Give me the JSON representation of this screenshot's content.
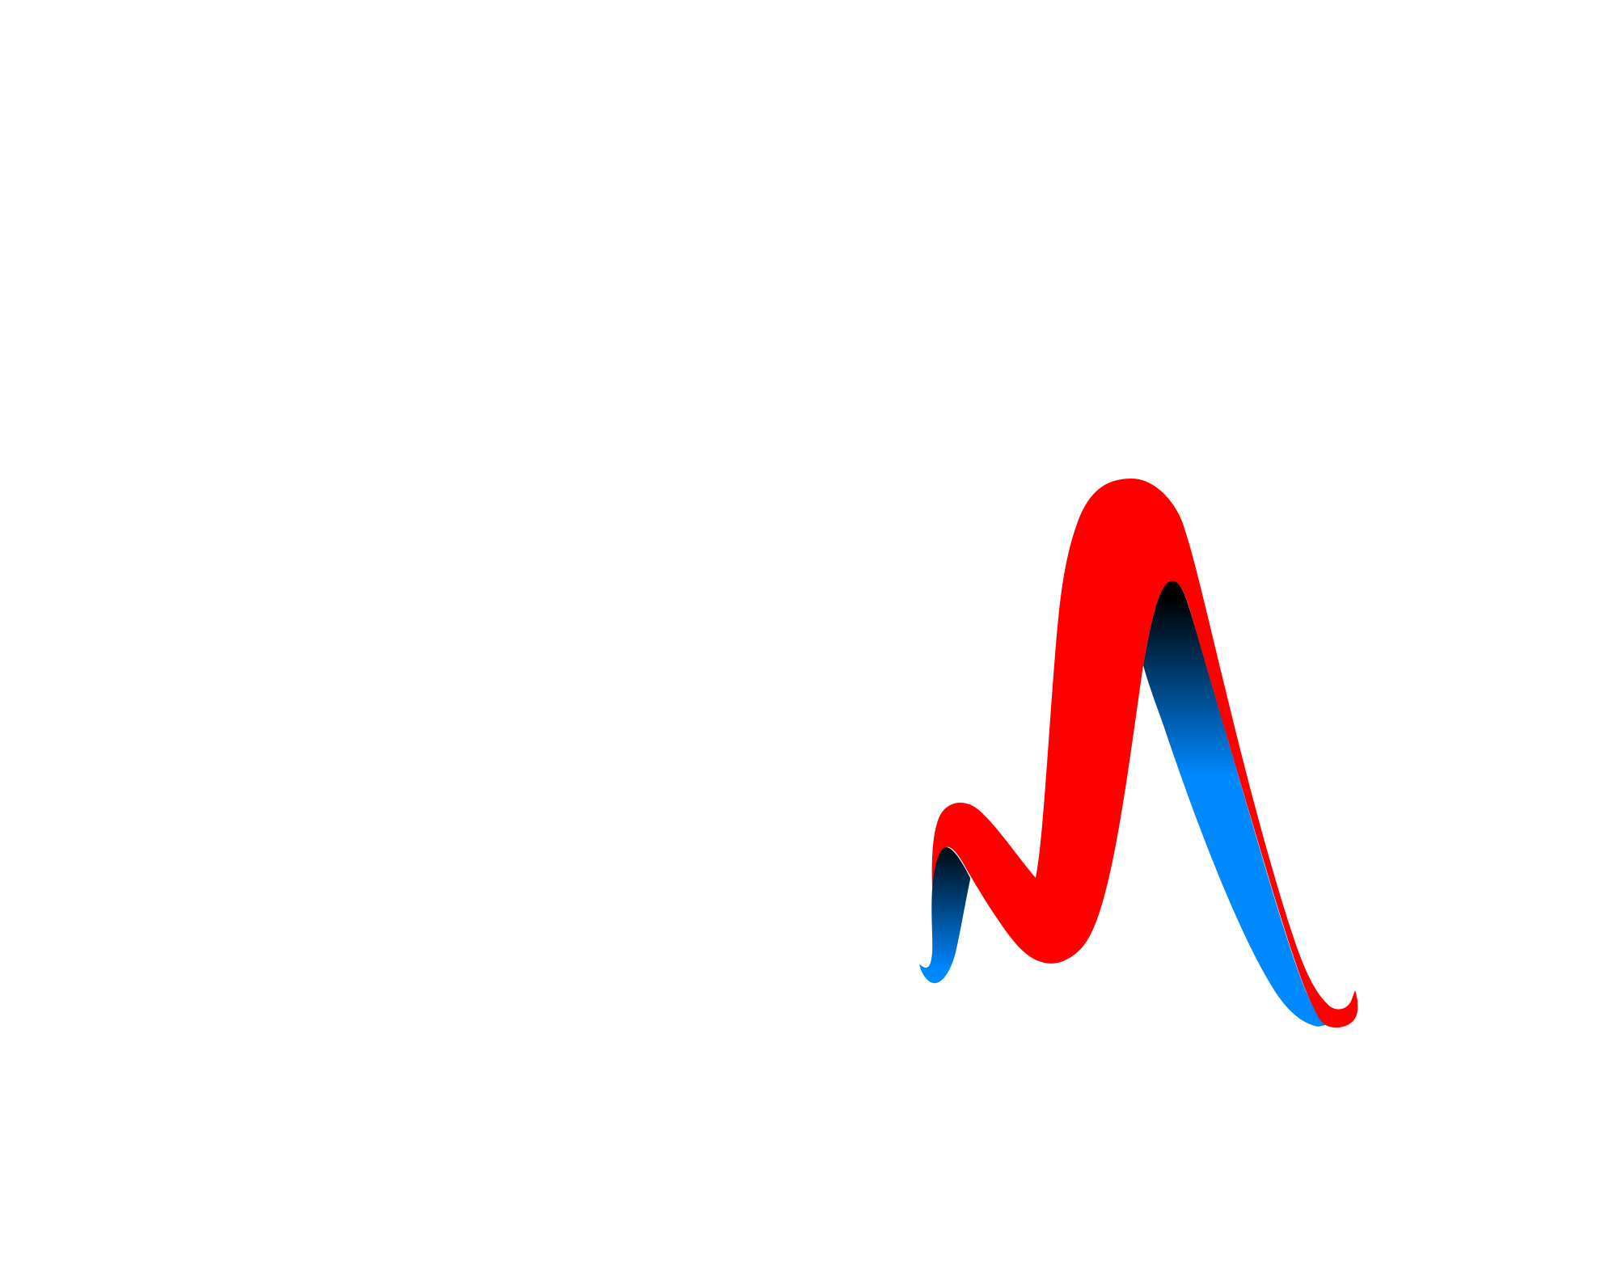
{
  "figure": {
    "background_color": "#ffffff",
    "ribbon": {
      "front_color": "#ff0000",
      "back_gradient_top_color": "#000000",
      "back_gradient_bottom_color": "#0088ff"
    }
  }
}
